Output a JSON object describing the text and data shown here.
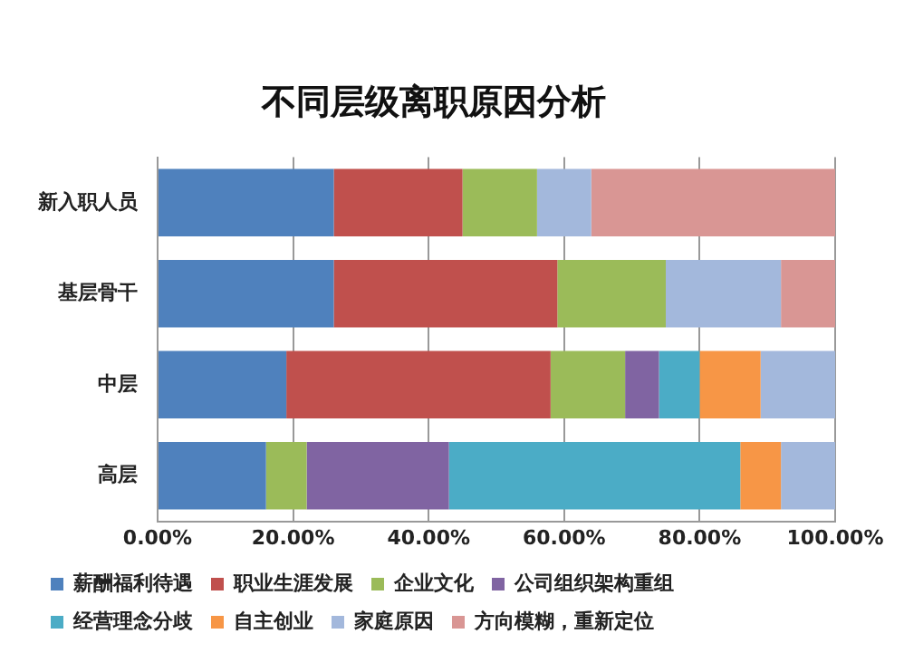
{
  "chart_data": {
    "type": "bar",
    "title": "不同层级离职原因分析",
    "orientation": "horizontal",
    "stacked": true,
    "categories": [
      "新入职人员",
      "基层骨干",
      "中层",
      "高层"
    ],
    "series": [
      {
        "name": "薪酬福利待遇",
        "color": "#4f81bd",
        "values": [
          26,
          26,
          19,
          16
        ]
      },
      {
        "name": "职业生涯发展",
        "color": "#c0504d",
        "values": [
          19,
          33,
          39,
          null
        ]
      },
      {
        "name": "企业文化",
        "color": "#9bbb59",
        "values": [
          11,
          16,
          11,
          6
        ]
      },
      {
        "name": "公司组织架构重组",
        "color": "#8064a2",
        "values": [
          null,
          null,
          5,
          21
        ]
      },
      {
        "name": "经营理念分歧",
        "color": "#4bacc6",
        "values": [
          null,
          null,
          6,
          43
        ]
      },
      {
        "name": "自主创业",
        "color": "#f79646",
        "values": [
          null,
          null,
          9,
          6
        ]
      },
      {
        "name": "家庭原因",
        "color": "#a3b8dc",
        "values": [
          8,
          17,
          11,
          8
        ]
      },
      {
        "name": "方向模糊，重新定位",
        "color": "#d99694",
        "values": [
          36,
          8,
          null,
          null
        ]
      }
    ],
    "xlim": [
      0,
      100
    ],
    "xticks": [
      {
        "value": 0,
        "label": "0.00%"
      },
      {
        "value": 20,
        "label": "20.00%"
      },
      {
        "value": 40,
        "label": "40.00%"
      },
      {
        "value": 60,
        "label": "60.00%"
      },
      {
        "value": 80,
        "label": "80.00%"
      },
      {
        "value": 100,
        "label": "100.00%"
      }
    ],
    "grid": "x",
    "legend": "bottom"
  }
}
